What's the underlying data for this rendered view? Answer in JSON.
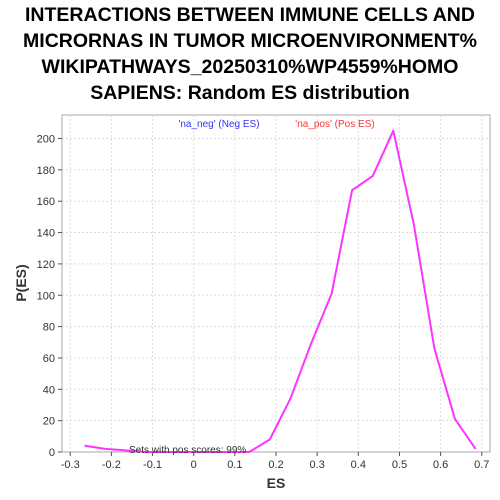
{
  "chart_data": {
    "type": "line",
    "title_lines": [
      "INTERACTIONS BETWEEN IMMUNE CELLS AND",
      "MICRORNAS IN TUMOR MICROENVIRONMENT%",
      "WIKIPATHWAYS_20250310%WP4559%HOMO",
      "SAPIENS: Random ES distribution"
    ],
    "xlabel": "ES",
    "ylabel": "P(ES)",
    "xlim": [
      -0.32,
      0.72
    ],
    "ylim": [
      0,
      215
    ],
    "xticks": [
      -0.3,
      -0.2,
      -0.1,
      0,
      0.1,
      0.2,
      0.3,
      0.4,
      0.5,
      0.6,
      0.7
    ],
    "xtick_labels": [
      "-0.3",
      "-0.2",
      "-0.1",
      "0",
      "0.1",
      "0.2",
      "0.3",
      "0.4",
      "0.5",
      "0.6",
      "0.7"
    ],
    "yticks": [
      0,
      20,
      40,
      60,
      80,
      100,
      120,
      140,
      160,
      180,
      200
    ],
    "ytick_labels": [
      "0",
      "20",
      "40",
      "60",
      "80",
      "100",
      "120",
      "140",
      "160",
      "180",
      "200"
    ],
    "grid": true,
    "legend": [
      {
        "label": "'na_neg' (Neg ES)",
        "color": "#3333ff"
      },
      {
        "label": "'na_pos' (Pos ES)",
        "color": "#ff3333"
      }
    ],
    "annotation": "Sets with pos scores: 99%",
    "series": [
      {
        "color": "#ff33ff",
        "x": [
          -0.265,
          -0.215,
          -0.165,
          -0.115,
          -0.065,
          -0.015,
          0.035,
          0.085,
          0.135,
          0.185,
          0.235,
          0.285,
          0.335,
          0.385,
          0.435,
          0.485,
          0.535,
          0.585,
          0.635,
          0.685
        ],
        "y": [
          4,
          2,
          1,
          0,
          0,
          0,
          0,
          0,
          0,
          8,
          34,
          69,
          101,
          167,
          176,
          205,
          145,
          66,
          21,
          2
        ]
      }
    ]
  }
}
